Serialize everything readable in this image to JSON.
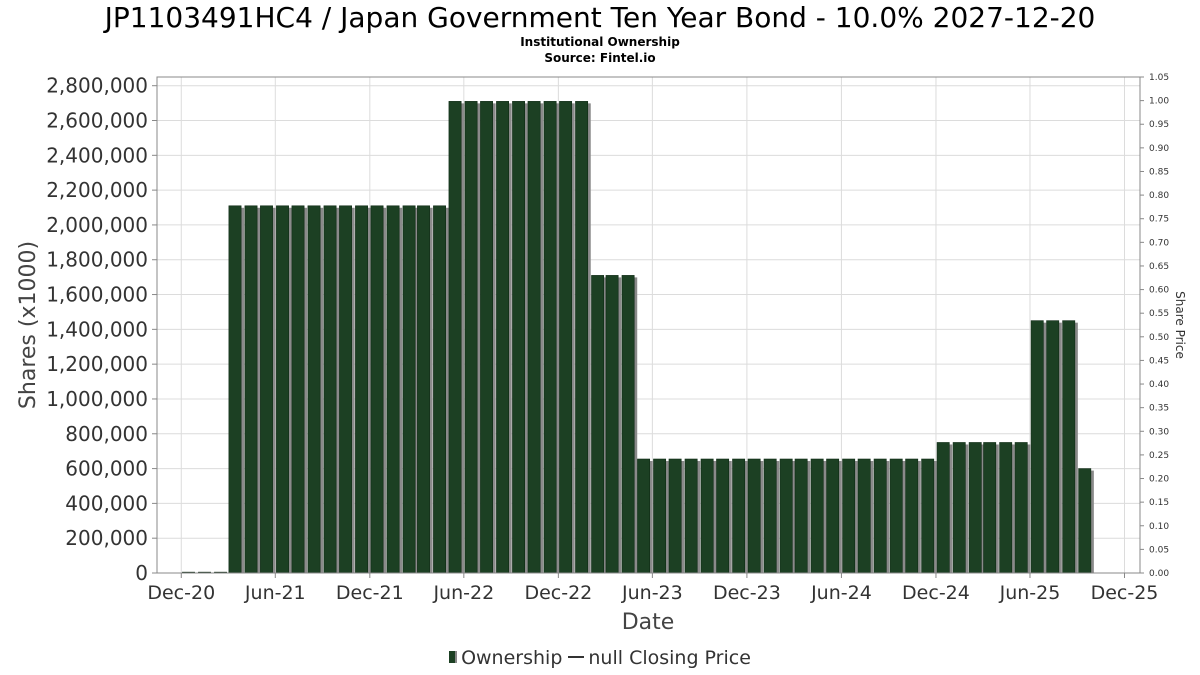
{
  "title": "JP1103491HC4 / Japan Government Ten Year Bond - 10.0% 2027-12-20",
  "subtitle": "Institutional Ownership",
  "source": "Source: Fintel.io",
  "legend": {
    "ownership": "Ownership",
    "closing_price": "null Closing Price"
  },
  "colors": {
    "bar": "#1c4023",
    "bar_shadow": "#8a8a8a",
    "grid": "#dcdcdc",
    "axis": "#888888"
  },
  "chart_data": {
    "type": "bar",
    "xlabel": "Date",
    "ylabel": "Shares (x1000)",
    "y2label": "Share Price",
    "ylim": [
      0,
      2850000
    ],
    "y2lim": [
      0,
      1.05
    ],
    "xlim": [
      "2020-10-15",
      "2025-12-31"
    ],
    "y_ticks": [
      "0",
      "200,000",
      "400,000",
      "600,000",
      "800,000",
      "1,000,000",
      "1,200,000",
      "1,400,000",
      "1,600,000",
      "1,800,000",
      "2,000,000",
      "2,200,000",
      "2,400,000",
      "2,600,000",
      "2,800,000"
    ],
    "y_tick_values": [
      0,
      200000,
      400000,
      600000,
      800000,
      1000000,
      1200000,
      1400000,
      1600000,
      1800000,
      2000000,
      2200000,
      2400000,
      2600000,
      2800000
    ],
    "y2_ticks": [
      "0.00",
      "0.05",
      "0.10",
      "0.15",
      "0.20",
      "0.25",
      "0.30",
      "0.35",
      "0.40",
      "0.45",
      "0.50",
      "0.55",
      "0.60",
      "0.65",
      "0.70",
      "0.75",
      "0.80",
      "0.85",
      "0.90",
      "0.95",
      "1.00",
      "1.05"
    ],
    "x_ticks": [
      {
        "label": "Dec-20",
        "date": "2020-12-01"
      },
      {
        "label": "Jun-21",
        "date": "2021-06-01"
      },
      {
        "label": "Dec-21",
        "date": "2021-12-01"
      },
      {
        "label": "Jun-22",
        "date": "2022-06-01"
      },
      {
        "label": "Dec-22",
        "date": "2022-12-01"
      },
      {
        "label": "Jun-23",
        "date": "2023-06-01"
      },
      {
        "label": "Dec-23",
        "date": "2023-12-01"
      },
      {
        "label": "Jun-24",
        "date": "2024-06-01"
      },
      {
        "label": "Dec-24",
        "date": "2024-12-01"
      },
      {
        "label": "Jun-25",
        "date": "2025-06-01"
      },
      {
        "label": "Dec-25",
        "date": "2025-12-01"
      }
    ],
    "grid": true,
    "legend_position": "bottom-center",
    "series": [
      {
        "name": "Ownership",
        "dates": [
          "2020-12-15",
          "2021-01-15",
          "2021-02-15",
          "2021-03-15",
          "2021-04-15",
          "2021-05-15",
          "2021-06-15",
          "2021-07-15",
          "2021-08-15",
          "2021-09-15",
          "2021-10-15",
          "2021-11-15",
          "2021-12-15",
          "2022-01-15",
          "2022-02-15",
          "2022-03-15",
          "2022-04-15",
          "2022-05-15",
          "2022-06-15",
          "2022-07-15",
          "2022-08-15",
          "2022-09-15",
          "2022-10-15",
          "2022-11-15",
          "2022-12-15",
          "2023-01-15",
          "2023-02-15",
          "2023-03-15",
          "2023-04-15",
          "2023-05-15",
          "2023-06-15",
          "2023-07-15",
          "2023-08-15",
          "2023-09-15",
          "2023-10-15",
          "2023-11-15",
          "2023-12-15",
          "2024-01-15",
          "2024-02-15",
          "2024-03-15",
          "2024-04-15",
          "2024-05-15",
          "2024-06-15",
          "2024-07-15",
          "2024-08-15",
          "2024-09-15",
          "2024-10-15",
          "2024-11-15",
          "2024-12-15",
          "2025-01-15",
          "2025-02-15",
          "2025-03-15",
          "2025-04-15",
          "2025-05-15",
          "2025-06-15",
          "2025-07-15",
          "2025-08-15",
          "2025-09-15"
        ],
        "values": [
          5000,
          5000,
          5000,
          2110000,
          2110000,
          2110000,
          2110000,
          2110000,
          2110000,
          2110000,
          2110000,
          2110000,
          2110000,
          2110000,
          2110000,
          2110000,
          2110000,
          2710000,
          2710000,
          2710000,
          2710000,
          2710000,
          2710000,
          2710000,
          2710000,
          2710000,
          1710000,
          1710000,
          1710000,
          655000,
          655000,
          655000,
          655000,
          655000,
          655000,
          655000,
          655000,
          655000,
          655000,
          655000,
          655000,
          655000,
          655000,
          655000,
          655000,
          655000,
          655000,
          655000,
          750000,
          750000,
          750000,
          750000,
          750000,
          750000,
          1450000,
          1450000,
          1450000,
          600000
        ]
      }
    ]
  }
}
